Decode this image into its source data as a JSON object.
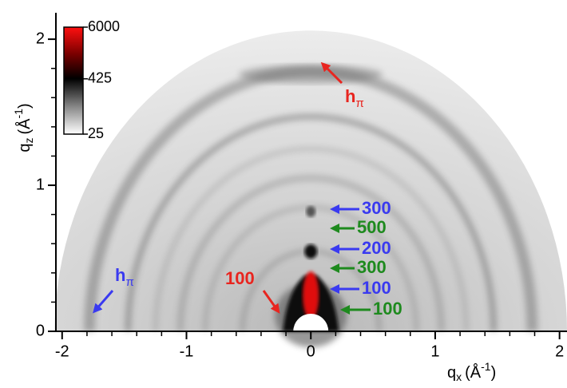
{
  "chart_data": {
    "type": "diffraction-image",
    "xlabel": {
      "symbol": "q",
      "sub": "x",
      "unit": "(Å",
      "sup": "-1",
      "close": ")"
    },
    "ylabel": {
      "symbol": "q",
      "sub": "z",
      "unit": "(Å",
      "sup": "-1",
      "close": ")"
    },
    "xlim": [
      -2.05,
      2.06
    ],
    "ylim": [
      0,
      2.17
    ],
    "xticks": [
      -2,
      -1,
      0,
      1,
      2
    ],
    "yticks": [
      0,
      1,
      2
    ],
    "minor_xticks": [
      -1.8,
      -1.6,
      -1.4,
      -1.2,
      -0.8,
      -0.6,
      -0.4,
      -0.2,
      0.2,
      0.4,
      0.6,
      0.8,
      1.2,
      1.4,
      1.6,
      1.8
    ],
    "minor_yticks": [
      0.2,
      0.4,
      0.6,
      0.8,
      1.2,
      1.4,
      1.6,
      1.8
    ],
    "colorbar": {
      "clim": [
        25,
        6000
      ],
      "log": true,
      "ticks": [
        6000,
        425,
        25
      ]
    },
    "annotations": [
      {
        "text": "h",
        "sub": "π",
        "color": "#e8251f"
      },
      {
        "text": "h",
        "sub": "π",
        "color": "#3a3af0"
      },
      {
        "text": "100",
        "color": "#e8251f"
      },
      {
        "text": "300",
        "color": "#3a3af0"
      },
      {
        "text": "500",
        "color": "#1e8a1e"
      },
      {
        "text": "200",
        "color": "#3a3af0"
      },
      {
        "text": "300",
        "color": "#1e8a1e"
      },
      {
        "text": "100",
        "color": "#3a3af0"
      },
      {
        "text": "100",
        "color": "#1e8a1e"
      }
    ]
  }
}
